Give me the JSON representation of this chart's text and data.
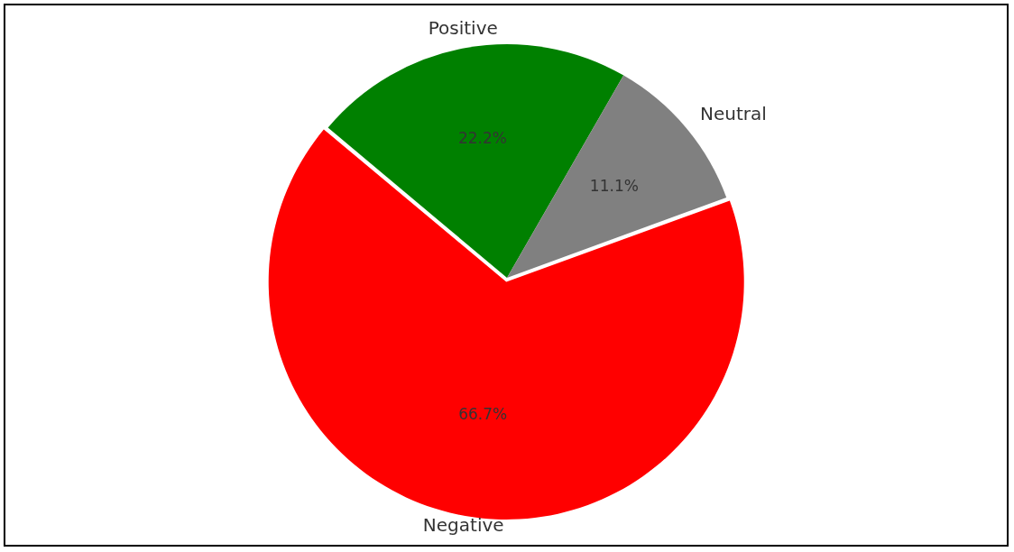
{
  "chart_data": {
    "type": "pie",
    "categories": [
      "Positive",
      "Neutral",
      "Negative"
    ],
    "values": [
      22.2,
      11.1,
      66.7
    ],
    "colors": [
      "#008000",
      "#808080",
      "#ff0000"
    ],
    "value_labels": [
      "22.2%",
      "11.1%",
      "66.7%"
    ],
    "legend": false
  }
}
